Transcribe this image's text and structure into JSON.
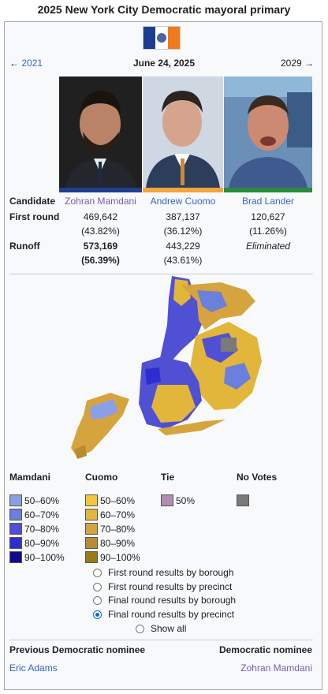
{
  "title": "2025 New York City Democratic mayoral primary",
  "nav": {
    "prev": "2021",
    "prev_arrow": "←",
    "next": "2029",
    "next_arrow": "→",
    "date": "June 24, 2025"
  },
  "colors": {
    "mamdani": "#1f3f8c",
    "cuomo": "#f0a63a",
    "lander": "#2a8a3e"
  },
  "table": {
    "candidate_label": "Candidate",
    "first_round_label": "First round",
    "runoff_label": "Runoff",
    "candidates": [
      {
        "name": "Zohran Mamdani",
        "first_votes": "469,642",
        "first_pct": "(43.82%)",
        "runoff_votes": "573,169",
        "runoff_pct": "(56.39%)"
      },
      {
        "name": "Andrew Cuomo",
        "first_votes": "387,137",
        "first_pct": "(36.12%)",
        "runoff_votes": "443,229",
        "runoff_pct": "(43.61%)"
      },
      {
        "name": "Brad Lander",
        "first_votes": "120,627",
        "first_pct": "(11.26%)",
        "runoff_status": "Eliminated"
      }
    ]
  },
  "legend": {
    "mamdani": {
      "title": "Mamdani",
      "items": [
        {
          "label": "50–60%",
          "color": "#8aa0e6"
        },
        {
          "label": "60–70%",
          "color": "#6b7fdc"
        },
        {
          "label": "70–80%",
          "color": "#5050d4"
        },
        {
          "label": "80–90%",
          "color": "#2e2ed0"
        },
        {
          "label": "90–100%",
          "color": "#0c0c8c"
        }
      ]
    },
    "cuomo": {
      "title": "Cuomo",
      "items": [
        {
          "label": "50–60%",
          "color": "#f2c83a"
        },
        {
          "label": "60–70%",
          "color": "#e2b63a"
        },
        {
          "label": "70–80%",
          "color": "#d6a43e"
        },
        {
          "label": "80–90%",
          "color": "#b98b32"
        },
        {
          "label": "90–100%",
          "color": "#9c7a12"
        }
      ]
    },
    "tie": {
      "title": "Tie",
      "items": [
        {
          "label": "50%",
          "color": "#b48bb4"
        }
      ]
    },
    "no_votes": {
      "title": "No Votes",
      "items": [
        {
          "label": "",
          "color": "#7a7a7a"
        }
      ]
    }
  },
  "options": [
    {
      "label": "First round results by borough",
      "selected": false
    },
    {
      "label": "First round results by precinct",
      "selected": false
    },
    {
      "label": "Final round results by borough",
      "selected": false
    },
    {
      "label": "Final round results by precinct",
      "selected": true
    },
    {
      "label": "Show all",
      "selected": false
    }
  ],
  "footer": {
    "prev_label": "Previous Democratic nominee",
    "prev_name": "Eric Adams",
    "next_label": "Democratic nominee",
    "next_name": "Zohran Mamdani"
  }
}
